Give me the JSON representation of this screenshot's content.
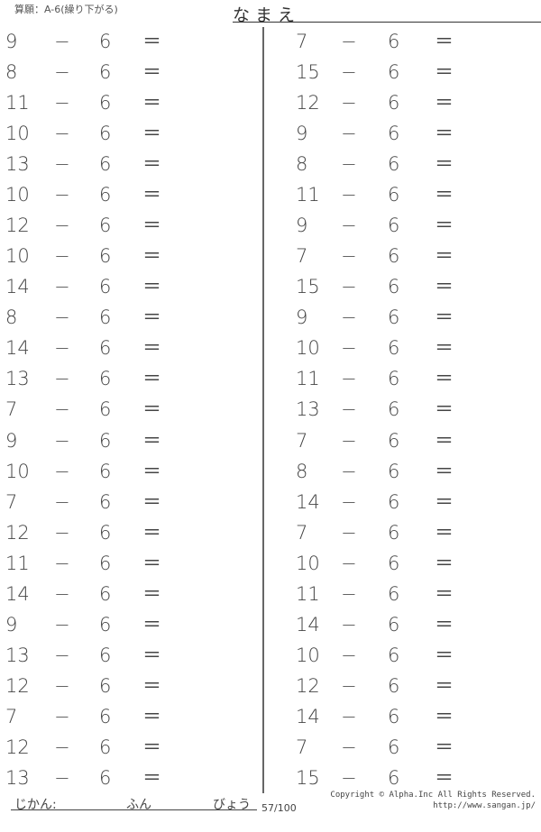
{
  "header": {
    "title": "算願：A-6(繰り下がる)",
    "name_label": "なまえ",
    "name_end": "."
  },
  "operator": "−",
  "equals": "＝",
  "subtrahend": "6",
  "left_column": [
    9,
    8,
    11,
    10,
    13,
    10,
    12,
    10,
    14,
    8,
    14,
    13,
    7,
    9,
    10,
    7,
    12,
    11,
    14,
    9,
    13,
    12,
    7,
    12,
    13
  ],
  "right_column": [
    7,
    15,
    12,
    9,
    8,
    11,
    9,
    7,
    15,
    9,
    10,
    11,
    13,
    7,
    8,
    14,
    7,
    10,
    11,
    14,
    10,
    12,
    14,
    7,
    15
  ],
  "footer": {
    "time_label": "じかん:",
    "minutes_label": "ふん",
    "seconds_label": "びょう",
    "page": "57/100",
    "copyright": "Copyright © Alpha.Inc All Rights Reserved.",
    "url": "http://www.sangan.jp/"
  }
}
